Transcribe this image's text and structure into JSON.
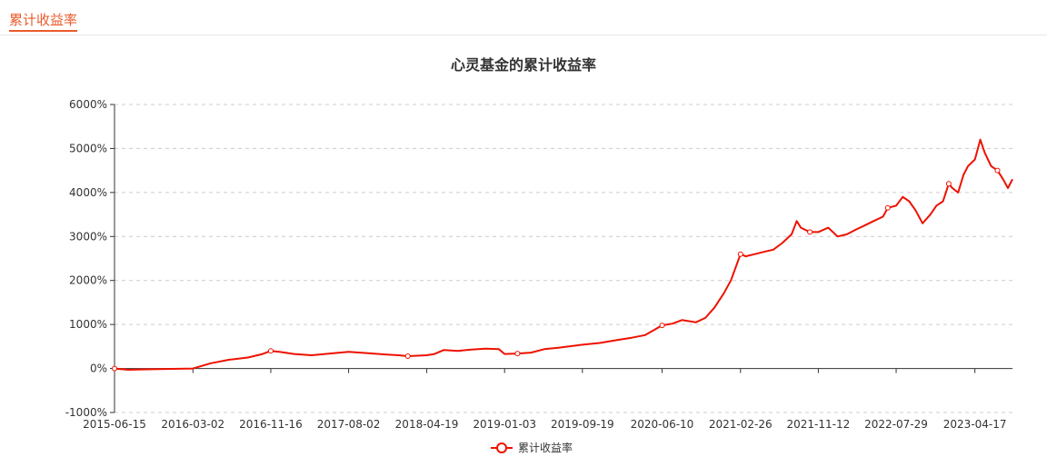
{
  "tab": {
    "label": "累计收益率"
  },
  "colors": {
    "accent": "#ec5a2a",
    "series": "#ee1100",
    "grid": "#cccccc",
    "axis": "#333333"
  },
  "chart_data": {
    "type": "line",
    "title": "心灵基金的累计收益率",
    "xlabel": "",
    "ylabel": "",
    "y_unit": "%",
    "ylim": [
      -1000,
      6000
    ],
    "y_ticks": [
      6000,
      5000,
      4000,
      3000,
      2000,
      1000,
      0,
      -1000
    ],
    "y_tick_labels": [
      "6000%",
      "5000%",
      "4000%",
      "3000%",
      "2000%",
      "1000%",
      "0%",
      "-1000%"
    ],
    "x_range": [
      "2015-06-15",
      "2023-08-20"
    ],
    "x_tick_labels": [
      "2015-06-15",
      "2016-03-02",
      "2016-11-16",
      "2017-08-02",
      "2018-04-19",
      "2019-01-03",
      "2019-09-19",
      "2020-06-10",
      "2021-02-26",
      "2021-11-12",
      "2022-07-29",
      "2023-04-17"
    ],
    "grid": "horizontal-dashed",
    "legend_position": "bottom-center",
    "series": [
      {
        "name": "累计收益率",
        "x": [
          "2015-06-15",
          "2015-08-01",
          "2015-10-01",
          "2015-12-01",
          "2016-03-02",
          "2016-05-01",
          "2016-07-01",
          "2016-09-01",
          "2016-10-20",
          "2016-11-16",
          "2016-12-15",
          "2017-02-01",
          "2017-04-01",
          "2017-06-01",
          "2017-08-02",
          "2017-10-01",
          "2017-12-01",
          "2018-01-15",
          "2018-02-15",
          "2018-04-19",
          "2018-05-15",
          "2018-06-15",
          "2018-08-01",
          "2018-09-15",
          "2018-11-01",
          "2018-12-15",
          "2019-01-03",
          "2019-02-15",
          "2019-04-01",
          "2019-05-15",
          "2019-07-01",
          "2019-09-19",
          "2019-11-15",
          "2020-01-15",
          "2020-03-01",
          "2020-04-15",
          "2020-06-10",
          "2020-07-15",
          "2020-08-15",
          "2020-10-01",
          "2020-11-01",
          "2020-12-01",
          "2021-01-01",
          "2021-01-25",
          "2021-02-10",
          "2021-02-26",
          "2021-03-15",
          "2021-04-15",
          "2021-05-15",
          "2021-06-15",
          "2021-07-15",
          "2021-08-15",
          "2021-09-01",
          "2021-09-15",
          "2021-10-15",
          "2021-11-12",
          "2021-12-15",
          "2022-01-15",
          "2022-02-15",
          "2022-03-15",
          "2022-04-15",
          "2022-05-15",
          "2022-06-15",
          "2022-07-01",
          "2022-07-29",
          "2022-08-20",
          "2022-09-10",
          "2022-10-01",
          "2022-10-25",
          "2022-11-20",
          "2022-12-10",
          "2023-01-01",
          "2023-01-20",
          "2023-02-01",
          "2023-02-20",
          "2023-03-10",
          "2023-03-25",
          "2023-04-17",
          "2023-05-05",
          "2023-05-20",
          "2023-06-10",
          "2023-07-01",
          "2023-07-20",
          "2023-08-05",
          "2023-08-20"
        ],
        "values": [
          0,
          -30,
          -20,
          -10,
          0,
          120,
          200,
          250,
          330,
          400,
          380,
          330,
          300,
          340,
          380,
          350,
          320,
          300,
          280,
          300,
          330,
          420,
          400,
          430,
          450,
          440,
          330,
          340,
          360,
          440,
          470,
          540,
          580,
          650,
          700,
          760,
          980,
          1020,
          1100,
          1050,
          1150,
          1380,
          1700,
          2000,
          2300,
          2600,
          2550,
          2600,
          2650,
          2700,
          2850,
          3050,
          3350,
          3200,
          3100,
          3100,
          3200,
          3000,
          3050,
          3150,
          3250,
          3350,
          3450,
          3650,
          3700,
          3900,
          3800,
          3600,
          3300,
          3500,
          3700,
          3800,
          4200,
          4100,
          4000,
          4400,
          4600,
          4750,
          5200,
          4900,
          4600,
          4500,
          4300,
          4100,
          4300
        ]
      }
    ]
  }
}
